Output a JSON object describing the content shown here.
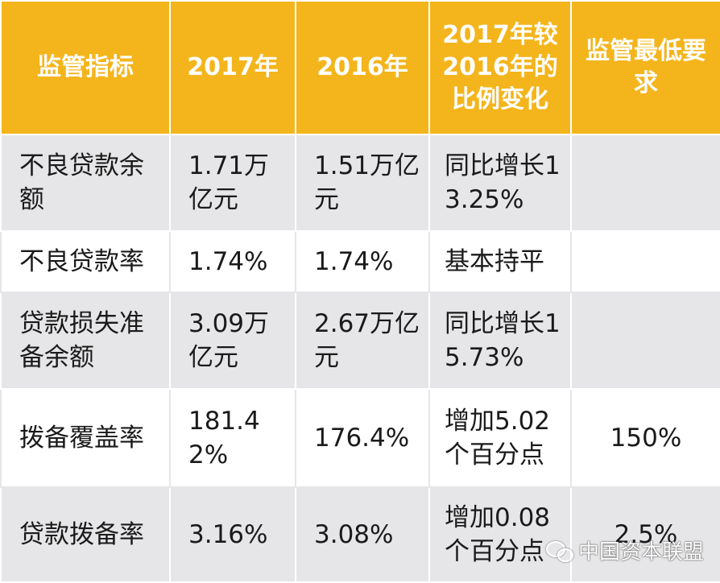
{
  "headers": [
    "监管指标",
    "2017年",
    "2016年",
    "2017年较2016年的比例变化",
    "监管最低要求"
  ],
  "rows": [
    {
      "indicator": "不良贷款余额",
      "y2017": "1.71万亿元",
      "y2016": "1.51万亿元",
      "change": "同比增长13.25%",
      "minimum": ""
    },
    {
      "indicator": "不良贷款率",
      "y2017": "1.74%",
      "y2016": "1.74%",
      "change": "基本持平",
      "minimum": ""
    },
    {
      "indicator": "贷款损失准备余额",
      "y2017": "3.09万亿元",
      "y2016": "2.67万亿元",
      "change": "同比增长15.73%",
      "minimum": ""
    },
    {
      "indicator": "拨备覆盖率",
      "y2017": "181.42%",
      "y2016": "176.4%",
      "change": "增加5.02个百分点",
      "minimum": "150%"
    },
    {
      "indicator": "贷款拨备率",
      "y2017": "3.16%",
      "y2016": "3.08%",
      "change": "增加0.08个百分点",
      "minimum": "2.5%"
    }
  ],
  "watermark": {
    "text": "中国资本联盟",
    "icon": "wechat-icon"
  }
}
